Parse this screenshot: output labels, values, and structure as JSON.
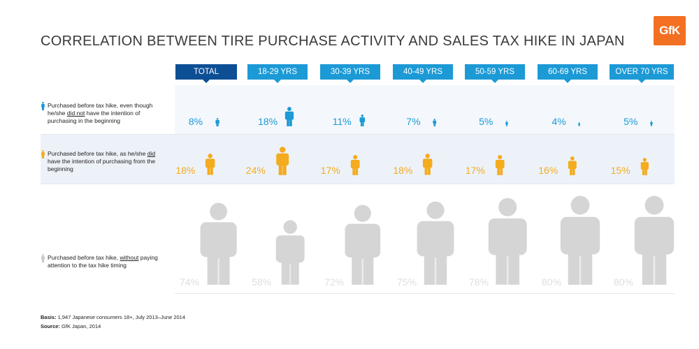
{
  "header": {
    "title": "CORRELATION BETWEEN TIRE PURCHASE ACTIVITY AND SALES TAX HIKE IN JAPAN",
    "logo_text": "GfK"
  },
  "colors": {
    "total_header": "#0d4f94",
    "age_header": "#1c9ad6",
    "blue": "#1b9ad6",
    "orange": "#f4ab1d",
    "gray": "#d5d5d5",
    "gray_text": "#dedede",
    "logo": "#f36f21"
  },
  "columns": [
    "TOTAL",
    "18-29 YRS",
    "30-39 YRS",
    "40-49 YRS",
    "50-59 YRS",
    "60-69 YRS",
    "OVER 70 YRS"
  ],
  "rows": [
    {
      "pre": "Purchased before tax hike, even though he/she ",
      "em": "did not",
      "post": " have the intention of purchasing in the beginning"
    },
    {
      "pre": "Purchased before tax hike, as he/she ",
      "em": "did",
      "post": " have the intention of purchasing from the beginning"
    },
    {
      "pre": "Purchased before tax hike, ",
      "em": "without",
      "post": " paying attention to the tax hike timing"
    }
  ],
  "chart_data": {
    "type": "table",
    "title": "CORRELATION BETWEEN TIRE PURCHASE ACTIVITY AND SALES TAX HIKE IN JAPAN",
    "categories": [
      "TOTAL",
      "18-29 YRS",
      "30-39 YRS",
      "40-49 YRS",
      "50-59 YRS",
      "60-69 YRS",
      "OVER 70 YRS"
    ],
    "series": [
      {
        "name": "Purchased before tax hike, even though he/she did not have the intention of purchasing in the beginning",
        "values": [
          8,
          18,
          11,
          7,
          5,
          4,
          5
        ],
        "labels": [
          "8%",
          "18%",
          "11%",
          "7%",
          "5%",
          "4%",
          "5%"
        ]
      },
      {
        "name": "Purchased before tax hike, as he/she did have the intention of purchasing from the beginning",
        "values": [
          18,
          24,
          17,
          18,
          17,
          16,
          15
        ],
        "labels": [
          "18%",
          "24%",
          "17%",
          "18%",
          "17%",
          "16%",
          "15%"
        ]
      },
      {
        "name": "Purchased before tax hike, without paying attention to the tax hike timing",
        "values": [
          74,
          58,
          72,
          75,
          78,
          80,
          80
        ],
        "labels": [
          "74%",
          "58%",
          "72%",
          "75%",
          "78%",
          "80%",
          "80%"
        ]
      }
    ],
    "unit": "%"
  },
  "footer": {
    "basis_label": "Basis:",
    "basis_text": " 1,947 Japanese consumers 18+, July 2013–June 2014",
    "source_label": "Source:",
    "source_text": " GfK Japan, 2014"
  }
}
